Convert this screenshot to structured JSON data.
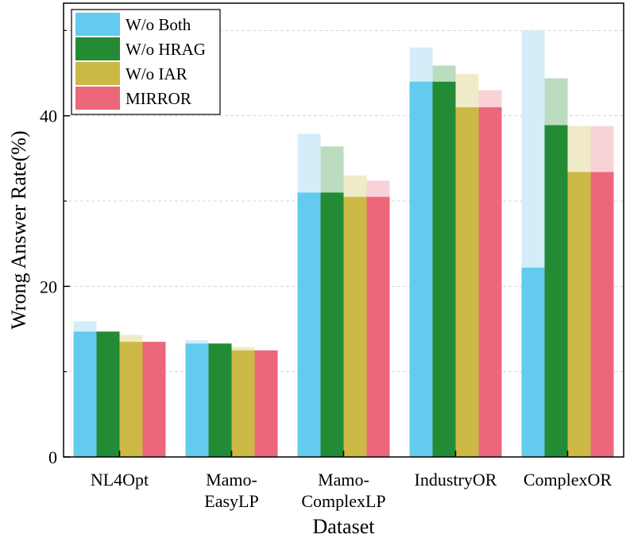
{
  "chart_data": {
    "type": "bar",
    "xlabel": "Dataset",
    "ylabel": "Wrong Answer Rate(%)",
    "ylim": [
      0,
      53.2
    ],
    "y_major_ticks": [
      0,
      20,
      40
    ],
    "y_minor_gridlines": [
      10,
      30,
      50
    ],
    "grid": true,
    "legend_position": "top-left",
    "categories": [
      [
        "NL4Opt"
      ],
      [
        "Mamo-",
        "EasyLP"
      ],
      [
        "Mamo-",
        "ComplexLP"
      ],
      [
        "IndustryOR"
      ],
      [
        "ComplexOR"
      ]
    ],
    "series": [
      {
        "name": "W/o Both",
        "color": "#62cbee",
        "light_color": "#d3eef9",
        "values": [
          14.7,
          13.3,
          31.0,
          44.0,
          22.2
        ],
        "upper_values": [
          15.9,
          13.7,
          37.9,
          48.0,
          50.0
        ]
      },
      {
        "name": "W/o HRAG",
        "color": "#228b34",
        "light_color": "#bcdcc0",
        "values": [
          14.7,
          13.3,
          31.0,
          44.0,
          38.9
        ],
        "upper_values": [
          14.7,
          13.3,
          36.4,
          45.9,
          44.4
        ]
      },
      {
        "name": "W/o IAR",
        "color": "#ccb945",
        "light_color": "#efeac8",
        "values": [
          13.5,
          12.5,
          30.5,
          41.0,
          33.4
        ],
        "upper_values": [
          14.3,
          12.9,
          33.0,
          44.9,
          38.8
        ]
      },
      {
        "name": "MIRROR",
        "color": "#ec677a",
        "light_color": "#f9d2d8",
        "values": [
          13.5,
          12.5,
          30.5,
          41.0,
          33.4
        ],
        "upper_values": [
          13.5,
          12.5,
          32.4,
          43.0,
          38.8
        ]
      }
    ]
  }
}
